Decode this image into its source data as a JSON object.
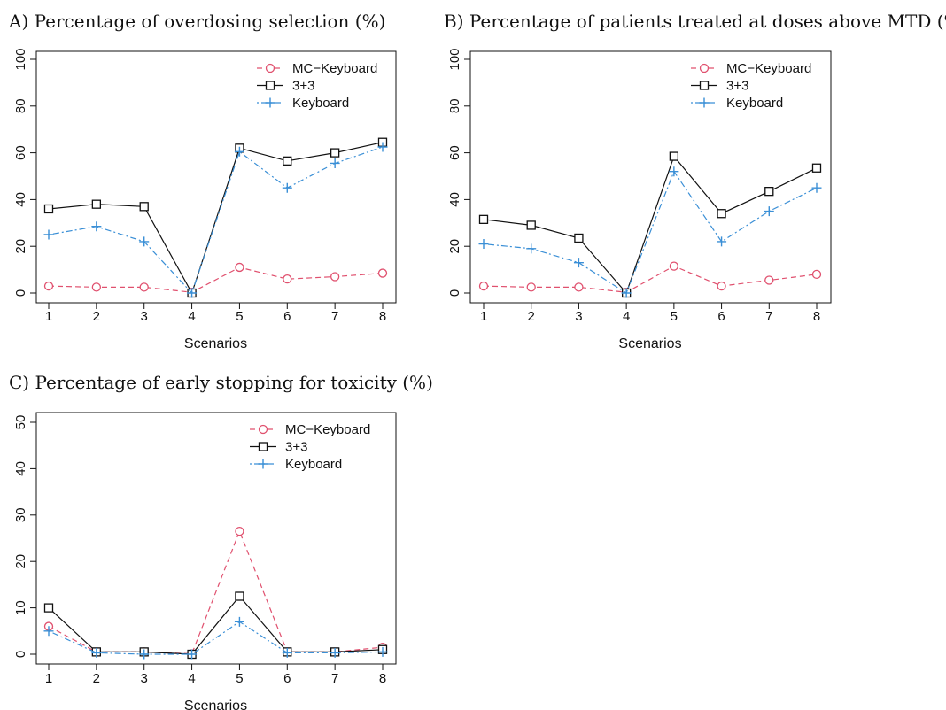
{
  "chart_data": [
    {
      "type": "line",
      "title": "A) Percentage of overdosing selection (%)",
      "xlabel": "Scenarios",
      "ylabel": "",
      "x": [
        1,
        2,
        3,
        4,
        5,
        6,
        7,
        8
      ],
      "xticks": [
        "1",
        "2",
        "3",
        "4",
        "5",
        "6",
        "7",
        "8"
      ],
      "ylim": [
        0,
        100
      ],
      "yticks": [
        "0",
        "20",
        "40",
        "60",
        "80",
        "100"
      ],
      "legend_position": "top-right",
      "series": [
        {
          "name": "MC−Keyboard",
          "color": "#e0506e",
          "marker": "circle",
          "line": "dashed",
          "values": [
            3,
            2.5,
            2.5,
            0.3,
            11,
            6,
            7,
            8.5
          ]
        },
        {
          "name": "3+3",
          "color": "#111111",
          "marker": "square",
          "line": "solid",
          "values": [
            36,
            38,
            37,
            0,
            62,
            56.5,
            60,
            64.5
          ]
        },
        {
          "name": "Keyboard",
          "color": "#3a8fd6",
          "marker": "plus",
          "line": "dotdash",
          "values": [
            25,
            28.5,
            22,
            0,
            60.5,
            45,
            55.5,
            62.5
          ]
        }
      ]
    },
    {
      "type": "line",
      "title": "B) Percentage of patients treated at doses above MTD (%)",
      "xlabel": "Scenarios",
      "ylabel": "",
      "x": [
        1,
        2,
        3,
        4,
        5,
        6,
        7,
        8
      ],
      "xticks": [
        "1",
        "2",
        "3",
        "4",
        "5",
        "6",
        "7",
        "8"
      ],
      "ylim": [
        0,
        100
      ],
      "yticks": [
        "0",
        "20",
        "40",
        "60",
        "80",
        "100"
      ],
      "legend_position": "top-right",
      "series": [
        {
          "name": "MC−Keyboard",
          "color": "#e0506e",
          "marker": "circle",
          "line": "dashed",
          "values": [
            3,
            2.5,
            2.5,
            0.3,
            11.5,
            3,
            5.5,
            8
          ]
        },
        {
          "name": "3+3",
          "color": "#111111",
          "marker": "square",
          "line": "solid",
          "values": [
            31.5,
            29,
            23.5,
            0,
            58.5,
            34,
            43.5,
            53.5
          ]
        },
        {
          "name": "Keyboard",
          "color": "#3a8fd6",
          "marker": "plus",
          "line": "dotdash",
          "values": [
            21,
            19,
            13,
            0,
            52,
            22,
            35,
            45
          ]
        }
      ]
    },
    {
      "type": "line",
      "title": "C) Percentage of early stopping for toxicity (%)",
      "xlabel": "Scenarios",
      "ylabel": "",
      "x": [
        1,
        2,
        3,
        4,
        5,
        6,
        7,
        8
      ],
      "xticks": [
        "1",
        "2",
        "3",
        "4",
        "5",
        "6",
        "7",
        "8"
      ],
      "ylim": [
        0,
        50
      ],
      "yticks": [
        "0",
        "10",
        "20",
        "30",
        "40",
        "50"
      ],
      "legend_position": "top-right",
      "series": [
        {
          "name": "MC−Keyboard",
          "color": "#e0506e",
          "marker": "circle",
          "line": "dashed",
          "values": [
            6,
            0.5,
            0.5,
            0.1,
            26.5,
            0.5,
            0.5,
            1.5
          ]
        },
        {
          "name": "3+3",
          "color": "#111111",
          "marker": "square",
          "line": "solid",
          "values": [
            10,
            0.5,
            0.5,
            0,
            12.5,
            0.5,
            0.5,
            1
          ]
        },
        {
          "name": "Keyboard",
          "color": "#3a8fd6",
          "marker": "plus",
          "line": "dotdash",
          "values": [
            5,
            0.3,
            0,
            0,
            7,
            0.3,
            0.3,
            0.5
          ]
        }
      ]
    }
  ]
}
